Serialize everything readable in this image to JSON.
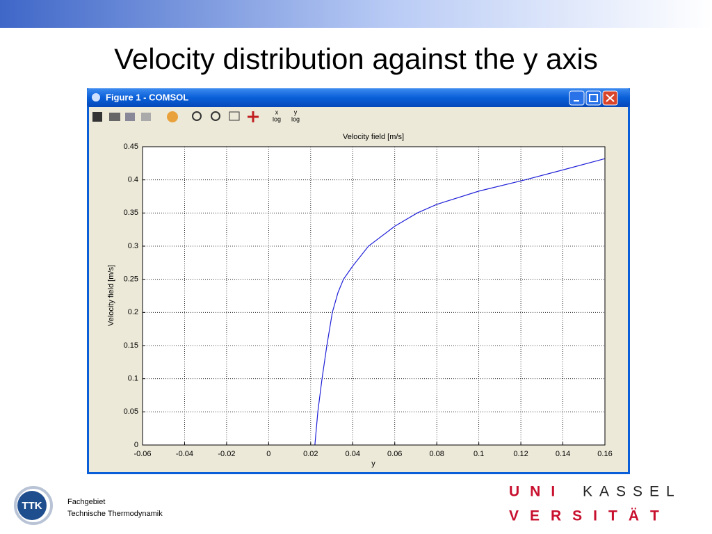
{
  "slide_title": "Velocity distribution against the y axis",
  "window_title": "Figure 1 - COMSOL",
  "toolbar": [
    {
      "axis": "x",
      "label": "log"
    },
    {
      "axis": "y",
      "label": "log"
    }
  ],
  "chart_data": {
    "type": "line",
    "title": "Velocity field [m/s]",
    "x_label": "y",
    "y_label": "Velocity field [m/s]",
    "x": [
      0.022,
      0.0234,
      0.0254,
      0.0277,
      0.0303,
      0.033,
      0.0356,
      0.04,
      0.0475,
      0.06,
      0.0707,
      0.08,
      0.1,
      0.122,
      0.14,
      0.16
    ],
    "values": [
      0,
      0.05,
      0.1,
      0.15,
      0.2,
      0.23,
      0.25,
      0.27,
      0.3,
      0.33,
      0.35,
      0.363,
      0.383,
      0.4,
      0.415,
      0.432
    ],
    "color": "#1f1fd8",
    "xlim": [
      -0.06,
      0.16
    ],
    "xticks": [
      -0.06,
      -0.04,
      -0.02,
      0,
      0.02,
      0.04,
      0.06,
      0.08,
      0.1,
      0.12,
      0.14,
      0.16
    ],
    "ylim": [
      0,
      0.45
    ],
    "yticks": [
      0,
      0.05,
      0.1,
      0.15,
      0.2,
      0.25,
      0.3,
      0.35,
      0.4,
      0.45
    ],
    "grid": true
  },
  "footer": {
    "logo": "TTK",
    "line1": "Fachgebiet",
    "line2": "Technische Thermodynamik",
    "uni_top_red": "UNI",
    "uni_top_black": "KASSEL",
    "uni_bottom": "VERSITÄT"
  }
}
